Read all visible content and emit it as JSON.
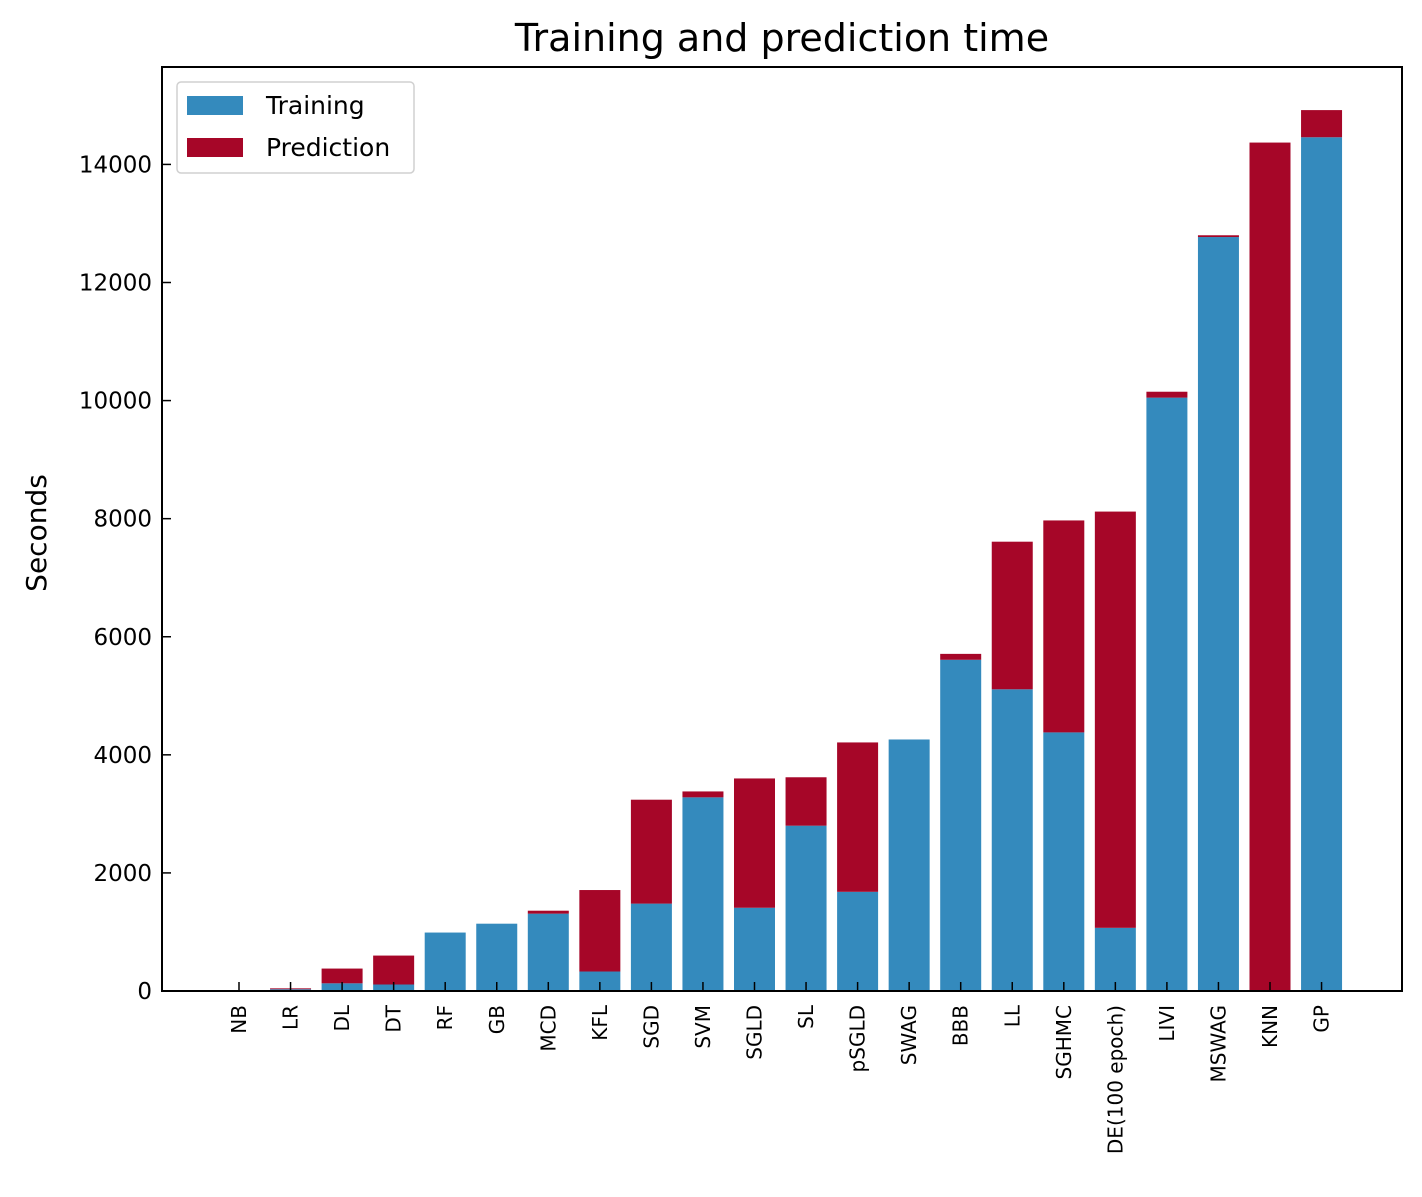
{
  "chart_data": {
    "type": "bar",
    "stacked": true,
    "title": "Training and prediction time",
    "xlabel": "",
    "ylabel": "Seconds",
    "ylim": [
      0,
      15650
    ],
    "yticks": [
      0,
      2000,
      4000,
      6000,
      8000,
      10000,
      12000,
      14000
    ],
    "legend_position": "top-left",
    "categories": [
      "NB",
      "LR",
      "DL",
      "DT",
      "RF",
      "GB",
      "MCD",
      "KFL",
      "SGD",
      "SVM",
      "SGLD",
      "SL",
      "pSGLD",
      "SWAG",
      "BBB",
      "LL",
      "SGHMC",
      "DE(100 epoch)",
      "LIVI",
      "MSWAG",
      "KNN",
      "GP"
    ],
    "series": [
      {
        "name": "Training",
        "color": "#348abd",
        "values": [
          5,
          30,
          130,
          110,
          990,
          1140,
          1310,
          330,
          1480,
          3280,
          1410,
          2800,
          1680,
          4260,
          5610,
          5110,
          4380,
          1070,
          10050,
          12770,
          0,
          14460
        ]
      },
      {
        "name": "Prediction",
        "color": "#a60628",
        "values": [
          5,
          15,
          250,
          490,
          0,
          0,
          50,
          1380,
          1760,
          100,
          2190,
          820,
          2530,
          0,
          100,
          2500,
          3590,
          7050,
          100,
          30,
          14370,
          460
        ]
      }
    ]
  }
}
